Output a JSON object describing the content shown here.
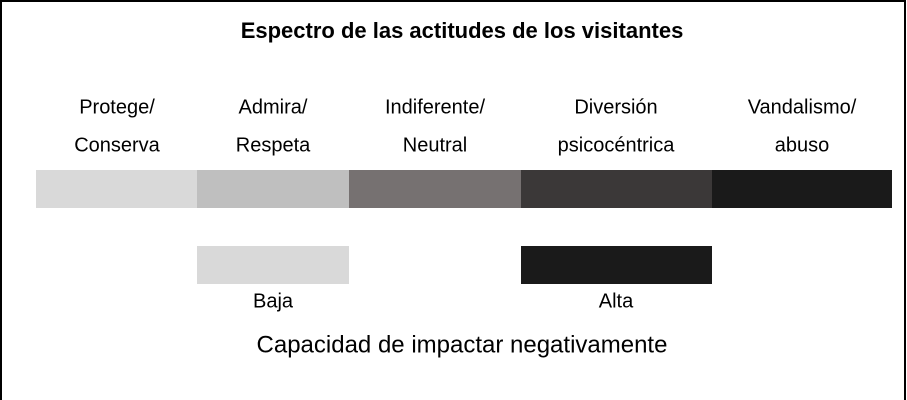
{
  "title": "Espectro de las actitudes de los visitantes",
  "spectrum": [
    {
      "label": [
        "Protege/",
        "Conserva"
      ]
    },
    {
      "label": [
        "Admira/",
        "Respeta"
      ]
    },
    {
      "label": [
        "Indiferente/",
        "Neutral"
      ]
    },
    {
      "label": [
        "Diversión",
        "psicocéntrica"
      ]
    },
    {
      "label": [
        "Vandalismo/",
        "abuso"
      ]
    }
  ],
  "legend": {
    "low": "Baja",
    "high": "Alta",
    "caption": "Capacidad de impactar negativamente"
  }
}
